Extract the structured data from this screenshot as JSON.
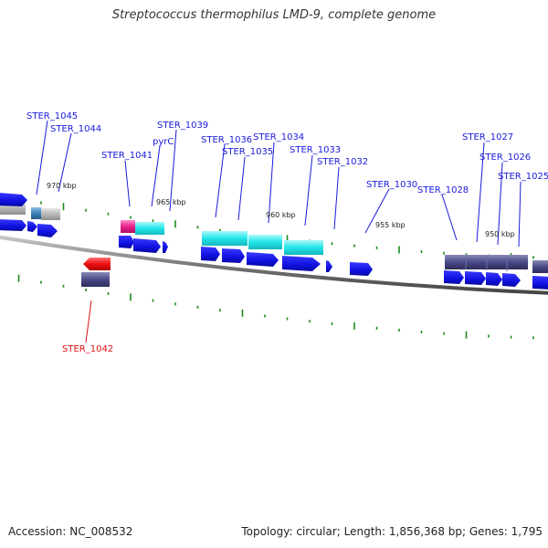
{
  "title": "Streptococcus thermophilus LMD-9, complete genome",
  "footer": {
    "accession_label": "Accession: NC_008532",
    "stats": "Topology: circular; Length: 1,856,368 bp; Genes: 1,795"
  },
  "kbp_ticks": [
    "970 kbp",
    "965 kbp",
    "960 kbp",
    "955 kbp",
    "950 kbp"
  ],
  "gene_labels": [
    {
      "name": "STER_1045",
      "color": "#1a1adc"
    },
    {
      "name": "STER_1044",
      "color": "#1a1adc"
    },
    {
      "name": "STER_1041",
      "color": "#1a1adc"
    },
    {
      "name": "pyrC",
      "color": "#1a1adc"
    },
    {
      "name": "STER_1039",
      "color": "#1a1adc"
    },
    {
      "name": "STER_1036",
      "color": "#1a1adc"
    },
    {
      "name": "STER_1035",
      "color": "#1a1adc"
    },
    {
      "name": "STER_1034",
      "color": "#1a1adc"
    },
    {
      "name": "STER_1033",
      "color": "#1a1adc"
    },
    {
      "name": "STER_1032",
      "color": "#1a1adc"
    },
    {
      "name": "STER_1030",
      "color": "#1a1adc"
    },
    {
      "name": "STER_1028",
      "color": "#1a1adc"
    },
    {
      "name": "STER_1027",
      "color": "#1a1adc"
    },
    {
      "name": "STER_1026",
      "color": "#1a1adc"
    },
    {
      "name": "STER_1025",
      "color": "#1a1adc"
    },
    {
      "name": "STER_1042",
      "color": "#dd1111"
    }
  ],
  "colors": {
    "cds_arrow": "#1010e0",
    "reverse_cds": "#ee1111",
    "backbone": "#888888",
    "tick": "#1a8a1a",
    "cyan_feature": "#22e6ea",
    "pink_feature": "#e8208a",
    "gray_feature": "#b8b8b8",
    "slate_feature": "#4a4a86",
    "steel_feature": "#3b82b8"
  }
}
